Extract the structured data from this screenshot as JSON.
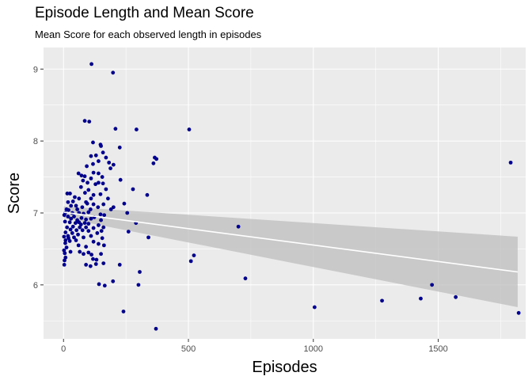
{
  "chart_data": {
    "type": "scatter",
    "title": "Episode Length and Mean Score",
    "subtitle": "Mean Score for each observed length in episodes",
    "xlabel": "Episodes",
    "ylabel": "Score",
    "xlim": [
      -80,
      1850
    ],
    "ylim": [
      5.25,
      9.3
    ],
    "x_ticks": [
      0,
      500,
      1000,
      1500
    ],
    "x_tick_labels": [
      "0",
      "500",
      "1000",
      "1500"
    ],
    "y_ticks": [
      6,
      7,
      8,
      9
    ],
    "y_tick_labels": [
      "6",
      "7",
      "8",
      "9"
    ],
    "grid": true,
    "background": "#EBEBEB",
    "grid_color": "#FFFFFF",
    "point_color": "#00008B",
    "trend_color": "#FFFFFF",
    "band_color": "#BEBEBE",
    "trend": {
      "x": [
        1,
        1818
      ],
      "y": [
        7.01,
        6.18
      ],
      "upper": [
        7.09,
        6.67
      ],
      "lower": [
        6.93,
        5.69
      ]
    },
    "points": [
      [
        112,
        9.07
      ],
      [
        198,
        8.95
      ],
      [
        85,
        8.28
      ],
      [
        103,
        8.27
      ],
      [
        208,
        8.17
      ],
      [
        292,
        8.16
      ],
      [
        503,
        8.16
      ],
      [
        118,
        7.98
      ],
      [
        148,
        7.95
      ],
      [
        150,
        7.93
      ],
      [
        225,
        7.91
      ],
      [
        158,
        7.84
      ],
      [
        170,
        7.77
      ],
      [
        365,
        7.77
      ],
      [
        372,
        7.75
      ],
      [
        110,
        7.79
      ],
      [
        130,
        7.8
      ],
      [
        182,
        7.7
      ],
      [
        188,
        7.62
      ],
      [
        200,
        7.67
      ],
      [
        140,
        7.72
      ],
      [
        93,
        7.65
      ],
      [
        118,
        7.68
      ],
      [
        1790,
        7.7
      ],
      [
        360,
        7.69
      ],
      [
        60,
        7.55
      ],
      [
        72,
        7.52
      ],
      [
        85,
        7.51
      ],
      [
        120,
        7.56
      ],
      [
        140,
        7.55
      ],
      [
        155,
        7.5
      ],
      [
        110,
        7.48
      ],
      [
        228,
        7.46
      ],
      [
        78,
        7.45
      ],
      [
        96,
        7.42
      ],
      [
        140,
        7.42
      ],
      [
        158,
        7.41
      ],
      [
        128,
        7.4
      ],
      [
        70,
        7.36
      ],
      [
        100,
        7.32
      ],
      [
        170,
        7.33
      ],
      [
        278,
        7.33
      ],
      [
        15,
        7.27
      ],
      [
        26,
        7.27
      ],
      [
        86,
        7.28
      ],
      [
        120,
        7.25
      ],
      [
        148,
        7.26
      ],
      [
        335,
        7.25
      ],
      [
        45,
        7.22
      ],
      [
        62,
        7.2
      ],
      [
        110,
        7.2
      ],
      [
        178,
        7.2
      ],
      [
        18,
        7.15
      ],
      [
        38,
        7.16
      ],
      [
        90,
        7.15
      ],
      [
        95,
        7.13
      ],
      [
        120,
        7.12
      ],
      [
        160,
        7.12
      ],
      [
        30,
        7.1
      ],
      [
        50,
        7.1
      ],
      [
        75,
        7.08
      ],
      [
        138,
        7.08
      ],
      [
        190,
        7.05
      ],
      [
        200,
        7.08
      ],
      [
        243,
        7.13
      ],
      [
        12,
        7.05
      ],
      [
        20,
        7.04
      ],
      [
        55,
        7.05
      ],
      [
        108,
        7.05
      ],
      [
        7,
        7.0
      ],
      [
        35,
        7.0
      ],
      [
        62,
        7.0
      ],
      [
        80,
        6.99
      ],
      [
        100,
        7.01
      ],
      [
        148,
        6.98
      ],
      [
        163,
        6.97
      ],
      [
        255,
        7.0
      ],
      [
        3,
        6.97
      ],
      [
        18,
        6.95
      ],
      [
        42,
        6.95
      ],
      [
        72,
        6.93
      ],
      [
        123,
        6.94
      ],
      [
        30,
        6.92
      ],
      [
        55,
        6.9
      ],
      [
        90,
        6.91
      ],
      [
        110,
        6.92
      ],
      [
        150,
        6.9
      ],
      [
        6,
        6.88
      ],
      [
        25,
        6.87
      ],
      [
        48,
        6.86
      ],
      [
        62,
        6.87
      ],
      [
        85,
        6.86
      ],
      [
        70,
        6.84
      ],
      [
        100,
        6.85
      ],
      [
        140,
        6.83
      ],
      [
        290,
        6.86
      ],
      [
        700,
        6.81
      ],
      [
        14,
        6.8
      ],
      [
        38,
        6.81
      ],
      [
        65,
        6.8
      ],
      [
        90,
        6.8
      ],
      [
        120,
        6.79
      ],
      [
        160,
        6.8
      ],
      [
        28,
        6.77
      ],
      [
        52,
        6.76
      ],
      [
        76,
        6.76
      ],
      [
        8,
        6.73
      ],
      [
        35,
        6.72
      ],
      [
        100,
        6.75
      ],
      [
        135,
        6.72
      ],
      [
        152,
        6.75
      ],
      [
        260,
        6.74
      ],
      [
        58,
        6.7
      ],
      [
        18,
        6.68
      ],
      [
        2,
        6.67
      ],
      [
        20,
        6.65
      ],
      [
        42,
        6.66
      ],
      [
        80,
        6.66
      ],
      [
        110,
        6.68
      ],
      [
        155,
        6.65
      ],
      [
        340,
        6.66
      ],
      [
        8,
        6.62
      ],
      [
        25,
        6.61
      ],
      [
        50,
        6.62
      ],
      [
        120,
        6.6
      ],
      [
        7,
        6.58
      ],
      [
        140,
        6.57
      ],
      [
        162,
        6.55
      ],
      [
        60,
        6.55
      ],
      [
        12,
        6.52
      ],
      [
        90,
        6.53
      ],
      [
        2,
        6.48
      ],
      [
        28,
        6.46
      ],
      [
        65,
        6.46
      ],
      [
        100,
        6.45
      ],
      [
        5,
        6.44
      ],
      [
        80,
        6.43
      ],
      [
        150,
        6.43
      ],
      [
        112,
        6.42
      ],
      [
        522,
        6.41
      ],
      [
        8,
        6.38
      ],
      [
        118,
        6.36
      ],
      [
        132,
        6.35
      ],
      [
        4,
        6.34
      ],
      [
        510,
        6.33
      ],
      [
        160,
        6.3
      ],
      [
        130,
        6.29
      ],
      [
        3,
        6.28
      ],
      [
        90,
        6.28
      ],
      [
        108,
        6.26
      ],
      [
        225,
        6.28
      ],
      [
        305,
        6.18
      ],
      [
        728,
        6.09
      ],
      [
        198,
        6.05
      ],
      [
        142,
        6.01
      ],
      [
        165,
        5.99
      ],
      [
        300,
        6.0
      ],
      [
        1475,
        6.0
      ],
      [
        1570,
        5.83
      ],
      [
        1430,
        5.81
      ],
      [
        1275,
        5.78
      ],
      [
        1005,
        5.69
      ],
      [
        240,
        5.63
      ],
      [
        1822,
        5.61
      ],
      [
        370,
        5.39
      ]
    ]
  }
}
